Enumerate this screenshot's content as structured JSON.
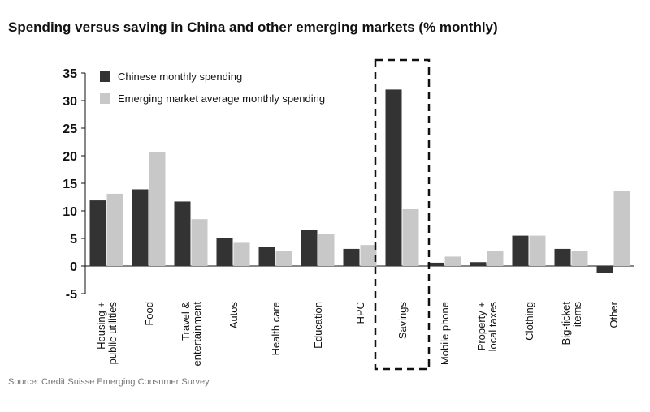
{
  "title": "Spending versus saving in China and other emerging markets (% monthly)",
  "source": "Source: Credit Suisse Emerging Consumer Survey",
  "colors": {
    "china": "#333333",
    "em": "#c8c8c8",
    "axis": "#111111",
    "highlight": "#111111"
  },
  "chart_data": {
    "type": "bar",
    "categories": [
      [
        "Housing +",
        "public utilities"
      ],
      [
        "Food"
      ],
      [
        "Travel &",
        "entertainment"
      ],
      [
        "Autos"
      ],
      [
        "Health care"
      ],
      [
        "Education"
      ],
      [
        "HPC"
      ],
      [
        "Savings"
      ],
      [
        "Mobile phone"
      ],
      [
        "Property +",
        "local taxes"
      ],
      [
        "Clothing"
      ],
      [
        "Big-ticket",
        "items"
      ],
      [
        "Other"
      ]
    ],
    "series": [
      {
        "name": "Chinese monthly spending",
        "values": [
          11.9,
          13.9,
          11.7,
          5.0,
          3.5,
          6.6,
          3.1,
          32.0,
          0.6,
          0.7,
          5.5,
          3.1,
          -1.2
        ]
      },
      {
        "name": "Emerging market average monthly spending",
        "values": [
          13.1,
          20.7,
          8.5,
          4.2,
          2.7,
          5.8,
          3.8,
          10.3,
          1.7,
          2.7,
          5.5,
          2.7,
          13.6
        ]
      }
    ],
    "yticks": [
      "35",
      "30",
      "25",
      "20",
      "15",
      "10",
      "5",
      "0",
      "-5"
    ],
    "ylim": [
      -5,
      35
    ],
    "highlight_category": "Savings",
    "legend_position": "top-left"
  }
}
